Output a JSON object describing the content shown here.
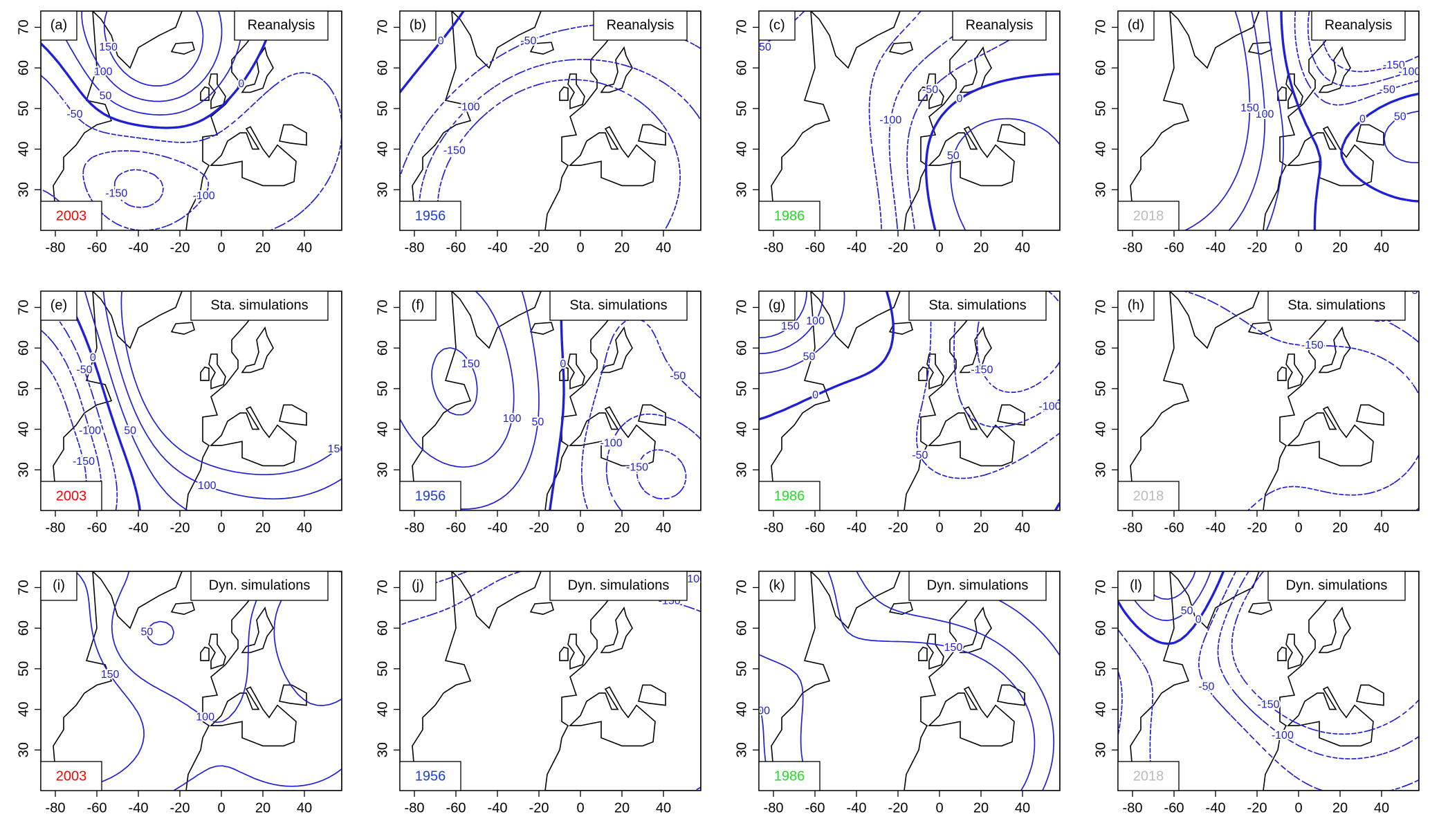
{
  "chart_data": [
    {
      "type": "contour",
      "panel": "(a)",
      "title": "Reanalysis",
      "year": "2003",
      "year_color": "#ff0000",
      "line_color": "#1f1fd6",
      "xlim": [
        -87,
        58
      ],
      "ylim": [
        20,
        74
      ],
      "xticks": [
        -80,
        -60,
        -40,
        -20,
        0,
        20,
        40
      ],
      "yticks": [
        30,
        40,
        50,
        60,
        70
      ],
      "levels": [
        -150,
        -100,
        -50,
        0,
        50,
        100,
        150
      ]
    },
    {
      "type": "contour",
      "panel": "(b)",
      "title": "Reanalysis",
      "year": "1956",
      "year_color": "#1f3fd0",
      "line_color": "#1f1fd6",
      "xlim": [
        -87,
        58
      ],
      "ylim": [
        20,
        74
      ],
      "xticks": [
        -80,
        -60,
        -40,
        -20,
        0,
        20,
        40
      ],
      "yticks": [
        30,
        40,
        50,
        60,
        70
      ],
      "levels": [
        -150,
        -100,
        -50,
        0,
        50,
        100,
        150
      ]
    },
    {
      "type": "contour",
      "panel": "(c)",
      "title": "Reanalysis",
      "year": "1986",
      "year_color": "#22dd22",
      "line_color": "#1f1fd6",
      "xlim": [
        -87,
        58
      ],
      "ylim": [
        20,
        74
      ],
      "xticks": [
        -80,
        -60,
        -40,
        -20,
        0,
        20,
        40
      ],
      "yticks": [
        30,
        40,
        50,
        60,
        70
      ],
      "levels": [
        -150,
        -100,
        -50,
        0,
        50,
        100,
        150
      ]
    },
    {
      "type": "contour",
      "panel": "(d)",
      "title": "Reanalysis",
      "year": "2018",
      "year_color": "#bbbbbb",
      "line_color": "#1f1fd6",
      "xlim": [
        -87,
        58
      ],
      "ylim": [
        20,
        74
      ],
      "xticks": [
        -80,
        -60,
        -40,
        -20,
        0,
        20,
        40
      ],
      "yticks": [
        30,
        40,
        50,
        60,
        70
      ],
      "levels": [
        -150,
        -100,
        -50,
        0,
        50,
        100,
        150
      ]
    },
    {
      "type": "contour",
      "panel": "(e)",
      "title": "Sta. simulations",
      "year": "2003",
      "year_color": "#ff0000",
      "line_color": "#1f1fd6",
      "xlim": [
        -87,
        58
      ],
      "ylim": [
        20,
        74
      ],
      "xticks": [
        -80,
        -60,
        -40,
        -20,
        0,
        20,
        40
      ],
      "yticks": [
        30,
        40,
        50,
        60,
        70
      ],
      "levels": [
        -150,
        -100,
        -50,
        0,
        50,
        100,
        150
      ]
    },
    {
      "type": "contour",
      "panel": "(f)",
      "title": "Sta. simulations",
      "year": "1956",
      "year_color": "#1f3fd0",
      "line_color": "#1f1fd6",
      "xlim": [
        -87,
        58
      ],
      "ylim": [
        20,
        74
      ],
      "xticks": [
        -80,
        -60,
        -40,
        -20,
        0,
        20,
        40
      ],
      "yticks": [
        30,
        40,
        50,
        60,
        70
      ],
      "levels": [
        -150,
        -100,
        -50,
        0,
        50,
        100,
        150
      ]
    },
    {
      "type": "contour",
      "panel": "(g)",
      "title": "Sta. simulations",
      "year": "1986",
      "year_color": "#22dd22",
      "line_color": "#1f1fd6",
      "xlim": [
        -87,
        58
      ],
      "ylim": [
        20,
        74
      ],
      "xticks": [
        -80,
        -60,
        -40,
        -20,
        0,
        20,
        40
      ],
      "yticks": [
        30,
        40,
        50,
        60,
        70
      ],
      "levels": [
        -150,
        -100,
        -50,
        0,
        50,
        100,
        150
      ]
    },
    {
      "type": "contour",
      "panel": "(h)",
      "title": "Sta. simulations",
      "year": "2018",
      "year_color": "#bbbbbb",
      "line_color": "#1f1fd6",
      "xlim": [
        -87,
        58
      ],
      "ylim": [
        20,
        74
      ],
      "xticks": [
        -80,
        -60,
        -40,
        -20,
        0,
        20,
        40
      ],
      "yticks": [
        30,
        40,
        50,
        60,
        70
      ],
      "levels": [
        -150,
        -100,
        -50,
        0,
        50,
        100,
        150
      ]
    },
    {
      "type": "contour",
      "panel": "(i)",
      "title": "Dyn. simulations",
      "year": "2003",
      "year_color": "#ff0000",
      "line_color": "#1f1fd6",
      "xlim": [
        -87,
        58
      ],
      "ylim": [
        20,
        74
      ],
      "xticks": [
        -80,
        -60,
        -40,
        -20,
        0,
        20,
        40
      ],
      "yticks": [
        30,
        40,
        50,
        60,
        70
      ],
      "levels": [
        -150,
        -100,
        -50,
        0,
        50,
        100,
        150
      ]
    },
    {
      "type": "contour",
      "panel": "(j)",
      "title": "Dyn. simulations",
      "year": "1956",
      "year_color": "#1f3fd0",
      "line_color": "#1f1fd6",
      "xlim": [
        -87,
        58
      ],
      "ylim": [
        20,
        74
      ],
      "xticks": [
        -80,
        -60,
        -40,
        -20,
        0,
        20,
        40
      ],
      "yticks": [
        30,
        40,
        50,
        60,
        70
      ],
      "levels": [
        -150,
        -100,
        -50,
        0,
        50,
        100,
        150
      ]
    },
    {
      "type": "contour",
      "panel": "(k)",
      "title": "Dyn. simulations",
      "year": "1986",
      "year_color": "#22dd22",
      "line_color": "#1f1fd6",
      "xlim": [
        -87,
        58
      ],
      "ylim": [
        20,
        74
      ],
      "xticks": [
        -80,
        -60,
        -40,
        -20,
        0,
        20,
        40
      ],
      "yticks": [
        30,
        40,
        50,
        60,
        70
      ],
      "levels": [
        -150,
        -100,
        -50,
        0,
        50,
        100,
        150
      ]
    },
    {
      "type": "contour",
      "panel": "(l)",
      "title": "Dyn. simulations",
      "year": "2018",
      "year_color": "#bbbbbb",
      "line_color": "#1f1fd6",
      "xlim": [
        -87,
        58
      ],
      "ylim": [
        20,
        74
      ],
      "xticks": [
        -80,
        -60,
        -40,
        -20,
        0,
        20,
        40
      ],
      "yticks": [
        30,
        40,
        50,
        60,
        70
      ],
      "levels": [
        -150,
        -100,
        -50,
        0,
        50,
        100,
        150
      ]
    }
  ]
}
